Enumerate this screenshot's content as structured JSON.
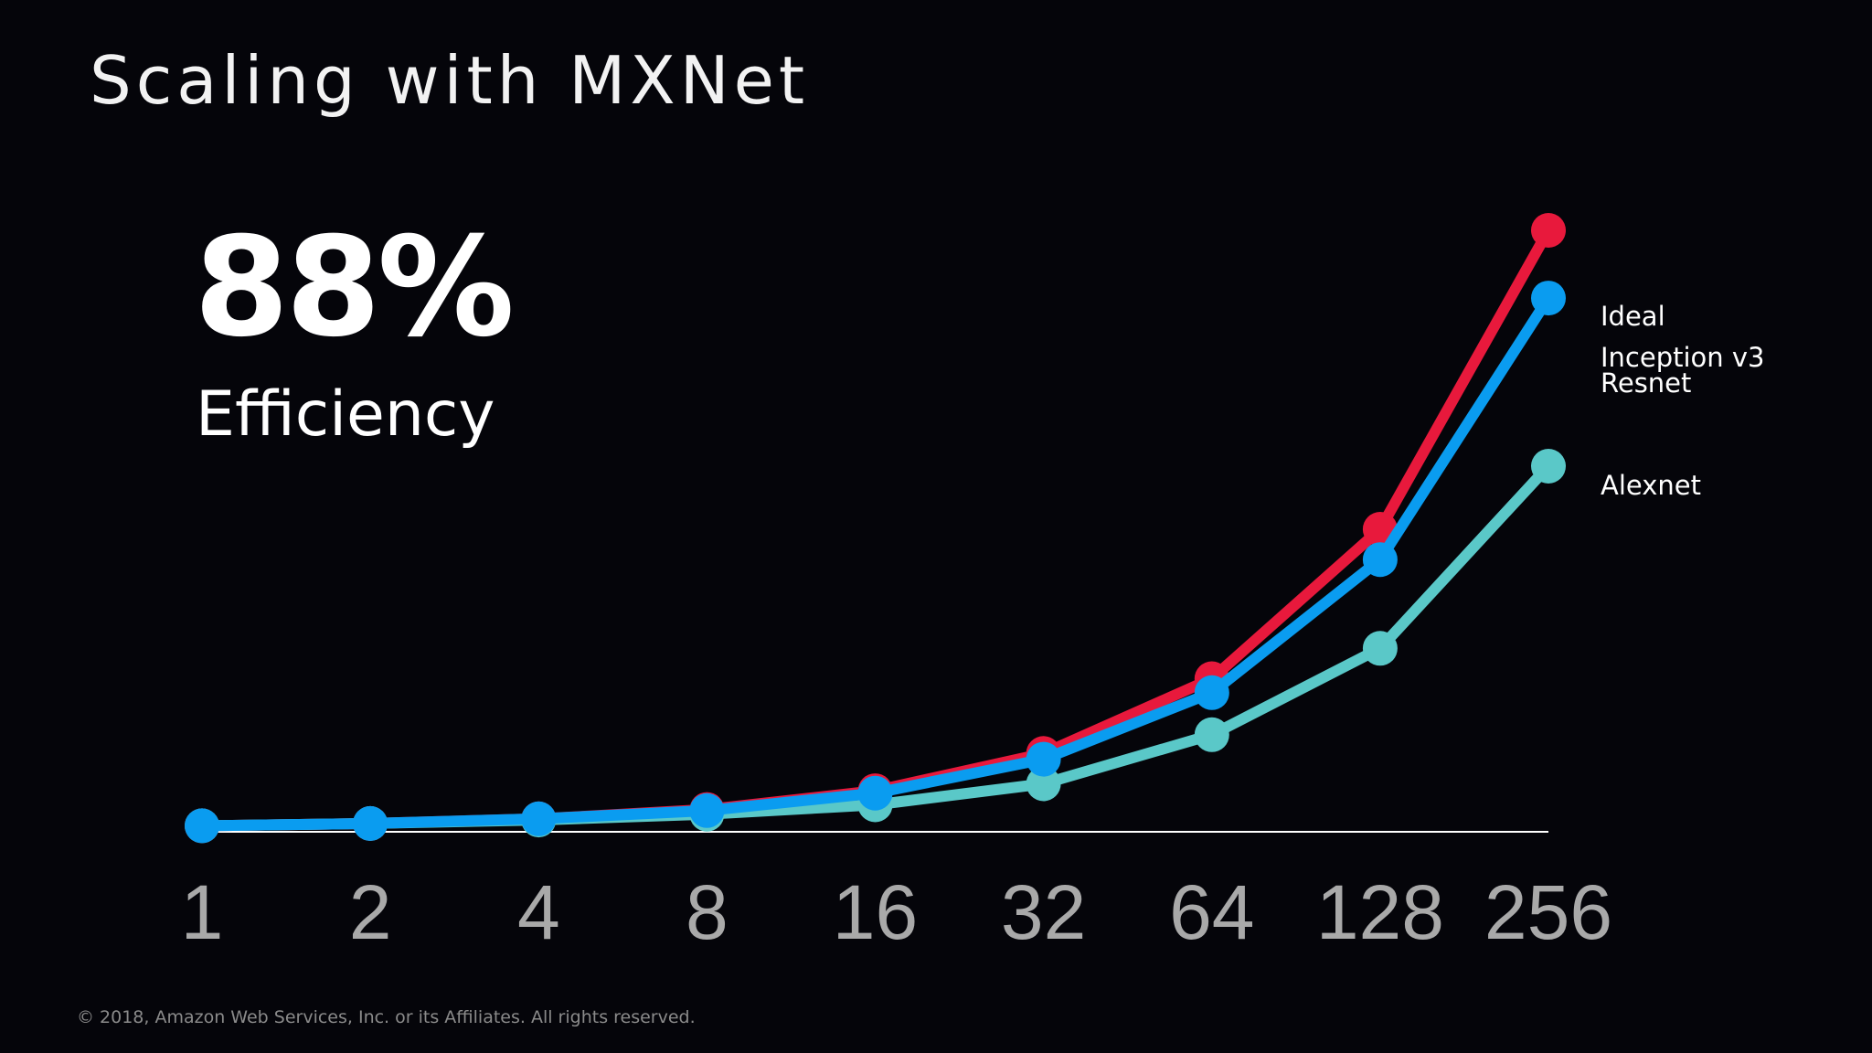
{
  "slide": {
    "title": "Scaling with MXNet",
    "stat_value": "88%",
    "stat_label": "Efficiency",
    "footer": "© 2018, Amazon Web Services, Inc. or its Affiliates. All rights reserved."
  },
  "chart_data": {
    "type": "line",
    "title": "",
    "xlabel": "",
    "ylabel": "",
    "x_scale": "log2",
    "categories": [
      "1",
      "2",
      "4",
      "8",
      "16",
      "32",
      "64",
      "128",
      "256"
    ],
    "x": [
      1,
      2,
      4,
      8,
      16,
      32,
      64,
      128,
      256
    ],
    "ylim": [
      0,
      256
    ],
    "grid": false,
    "legend": "right, labels at line ends",
    "series": [
      {
        "name": "Ideal",
        "color": "#e8193c",
        "values": [
          1,
          2,
          4,
          8,
          16,
          32,
          64,
          128,
          256
        ]
      },
      {
        "name": "Alexnet",
        "color": "#5ac8c8",
        "values": [
          1,
          2,
          3.5,
          6,
          10,
          19,
          40,
          77,
          155
        ]
      },
      {
        "name": "Inception v3\nResnet",
        "color": "#0a9cf0",
        "values": [
          1,
          2,
          4,
          7.5,
          15,
          29.5,
          58,
          115,
          227
        ]
      }
    ]
  }
}
